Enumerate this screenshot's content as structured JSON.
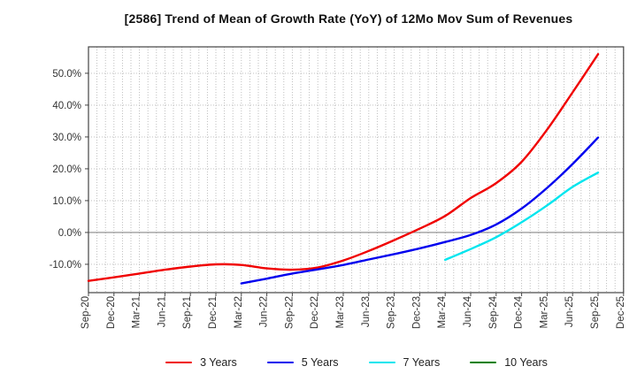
{
  "window": {
    "title": "[2586]  Trend of Mean of Growth Rate (YoY) of 12Mo Mov Sum of Revenues"
  },
  "chart_data": {
    "type": "line",
    "title": "[2586]  Trend of Mean of Growth Rate (YoY) of 12Mo Mov Sum of Revenues",
    "xlabel": "",
    "ylabel": "",
    "grid": true,
    "legend_position": "bottom",
    "ylim": [
      -18.9,
      58.3
    ],
    "y_ticks": [
      {
        "value": 50,
        "label": "50.0%"
      },
      {
        "value": 40,
        "label": "40.0%"
      },
      {
        "value": 30,
        "label": "30.0%"
      },
      {
        "value": 20,
        "label": "20.0%"
      },
      {
        "value": 10,
        "label": "10.0%"
      },
      {
        "value": 0,
        "label": "0.0%"
      },
      {
        "value": -10,
        "label": "-10.0%"
      }
    ],
    "categories": [
      "Sep-20",
      "Dec-20",
      "Mar-21",
      "Jun-21",
      "Sep-21",
      "Dec-21",
      "Mar-22",
      "Jun-22",
      "Sep-22",
      "Dec-22",
      "Mar-23",
      "Jun-23",
      "Sep-23",
      "Dec-23",
      "Mar-24",
      "Jun-24",
      "Sep-24",
      "Dec-24",
      "Mar-25",
      "Jun-25",
      "Sep-25",
      "Dec-25"
    ],
    "minor_gridlines_per_quarter": 3,
    "series": [
      {
        "name": "3 Years",
        "color": "#f00000",
        "start_index": 0,
        "values": [
          -15.2,
          -14.1,
          -12.9,
          -11.7,
          -10.7,
          -10.0,
          -10.2,
          -11.3,
          -11.7,
          -11.0,
          -8.8,
          -5.8,
          -2.4,
          1.2,
          5.2,
          10.8,
          15.5,
          22.2,
          32.3,
          44.0,
          56.0
        ]
      },
      {
        "name": "5 Years",
        "color": "#0000ee",
        "start_index": 6,
        "values": [
          -16.0,
          -14.5,
          -12.9,
          -11.6,
          -10.2,
          -8.5,
          -6.8,
          -5.0,
          -3.0,
          -0.8,
          2.5,
          7.5,
          14.0,
          21.5,
          29.8
        ]
      },
      {
        "name": "7 Years",
        "color": "#00e5ee",
        "start_index": 14,
        "values": [
          -8.6,
          -5.2,
          -1.5,
          3.2,
          8.5,
          14.3,
          18.8
        ]
      },
      {
        "name": "10 Years",
        "color": "#008000",
        "start_index": 0,
        "values": []
      }
    ]
  },
  "style": {
    "grid_color": "#b8b8b8",
    "zero_line_color": "#888888",
    "border_color": "#444444",
    "tick_label_color": "#333333"
  }
}
